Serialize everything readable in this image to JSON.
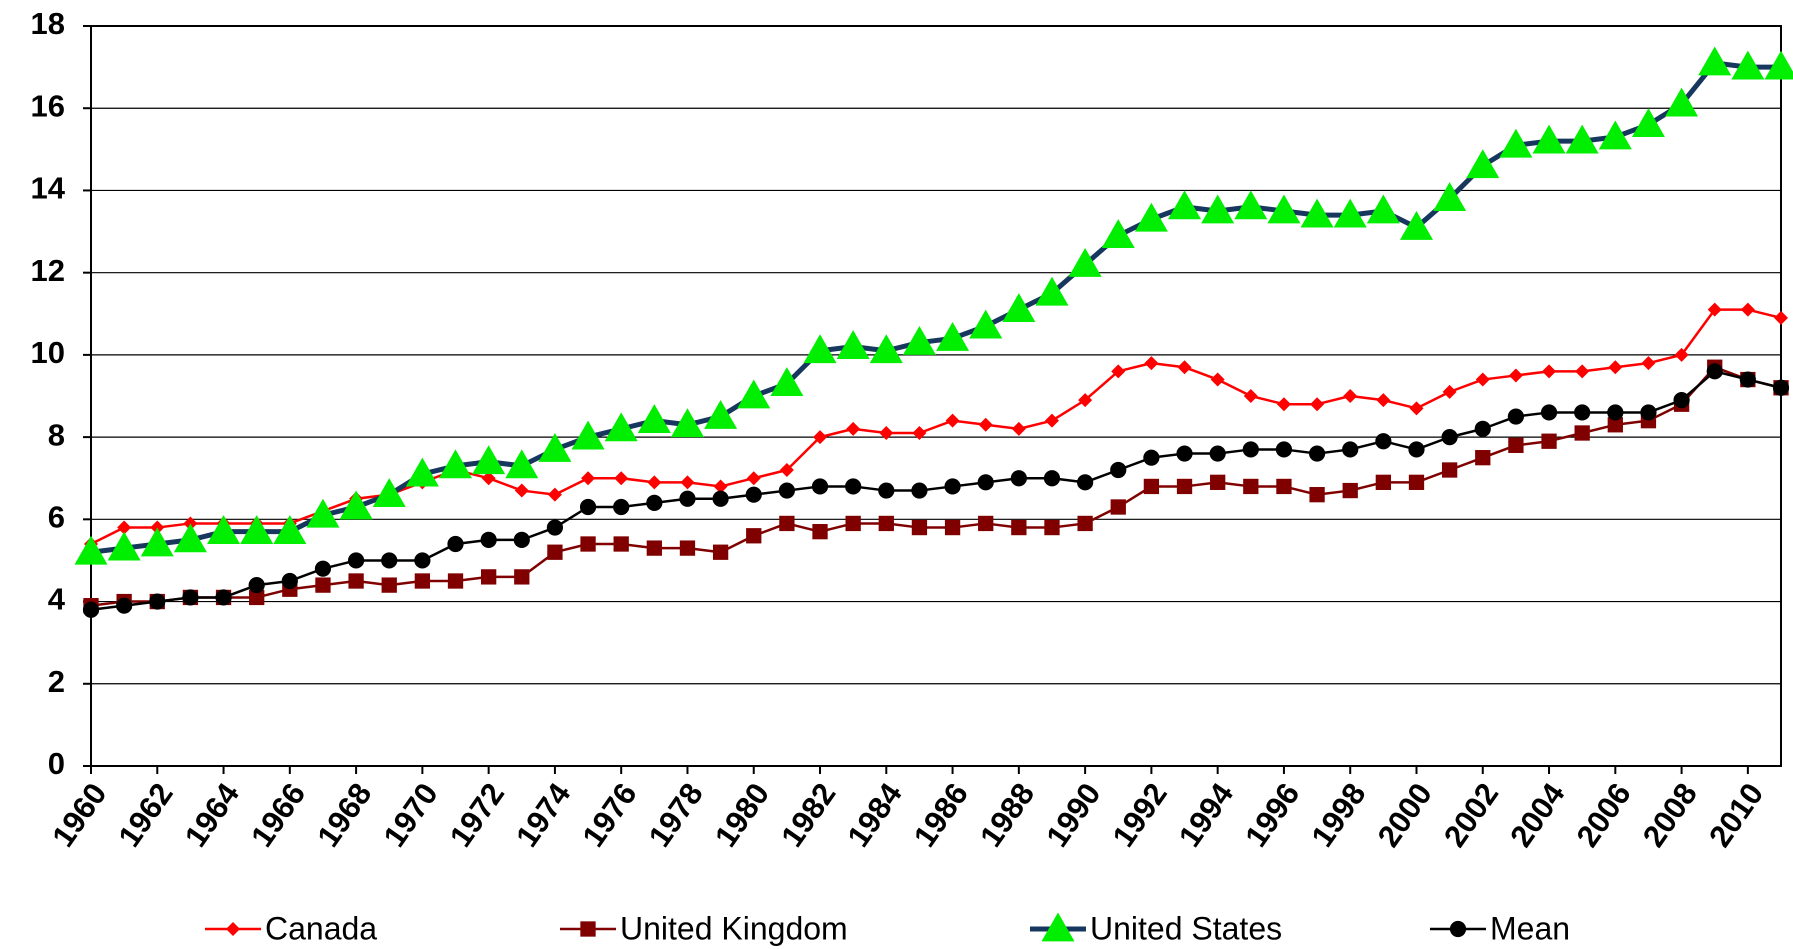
{
  "chart_data": {
    "type": "line",
    "x": [
      1960,
      1961,
      1962,
      1963,
      1964,
      1965,
      1966,
      1967,
      1968,
      1969,
      1970,
      1971,
      1972,
      1973,
      1974,
      1975,
      1976,
      1977,
      1978,
      1979,
      1980,
      1981,
      1982,
      1983,
      1984,
      1985,
      1986,
      1987,
      1988,
      1989,
      1990,
      1991,
      1992,
      1993,
      1994,
      1995,
      1996,
      1997,
      1998,
      1999,
      2000,
      2001,
      2002,
      2003,
      2004,
      2005,
      2006,
      2007,
      2008,
      2009,
      2010,
      2011
    ],
    "xlim": [
      1960,
      2011
    ],
    "xticks": [
      1960,
      1962,
      1964,
      1966,
      1968,
      1970,
      1972,
      1974,
      1976,
      1978,
      1980,
      1982,
      1984,
      1986,
      1988,
      1990,
      1992,
      1994,
      1996,
      1998,
      2000,
      2002,
      2004,
      2006,
      2008,
      2010
    ],
    "ylim": [
      0,
      18
    ],
    "yticks": [
      0,
      2,
      4,
      6,
      8,
      10,
      12,
      14,
      16,
      18
    ],
    "grid": true,
    "legend": "bottom",
    "series": [
      {
        "name": "Canada",
        "color": "#ff0000",
        "marker": "diamond",
        "marker_color": "#ff0000",
        "values": [
          5.4,
          5.8,
          5.8,
          5.9,
          5.9,
          5.9,
          5.9,
          6.2,
          6.5,
          6.6,
          6.9,
          7.2,
          7.0,
          6.7,
          6.6,
          7.0,
          7.0,
          6.9,
          6.9,
          6.8,
          7.0,
          7.2,
          8.0,
          8.2,
          8.1,
          8.1,
          8.4,
          8.3,
          8.2,
          8.4,
          8.9,
          9.6,
          9.8,
          9.7,
          9.4,
          9.0,
          8.8,
          8.8,
          9.0,
          8.9,
          8.7,
          9.1,
          9.4,
          9.5,
          9.6,
          9.6,
          9.7,
          9.8,
          10.0,
          11.1,
          11.1,
          10.9
        ]
      },
      {
        "name": "United Kingdom",
        "color": "#800000",
        "marker": "square",
        "marker_color": "#800000",
        "values": [
          3.9,
          4.0,
          4.0,
          4.1,
          4.1,
          4.1,
          4.3,
          4.4,
          4.5,
          4.4,
          4.5,
          4.5,
          4.6,
          4.6,
          5.2,
          5.4,
          5.4,
          5.3,
          5.3,
          5.2,
          5.6,
          5.9,
          5.7,
          5.9,
          5.9,
          5.8,
          5.8,
          5.9,
          5.8,
          5.8,
          5.9,
          6.3,
          6.8,
          6.8,
          6.9,
          6.8,
          6.8,
          6.6,
          6.7,
          6.9,
          6.9,
          7.2,
          7.5,
          7.8,
          7.9,
          8.1,
          8.3,
          8.4,
          8.8,
          9.7,
          9.4,
          9.2
        ]
      },
      {
        "name": "United States",
        "color": "#17375e",
        "marker": "triangle",
        "marker_color": "#00ee00",
        "values": [
          5.2,
          5.3,
          5.4,
          5.5,
          5.7,
          5.7,
          5.7,
          6.1,
          6.3,
          6.6,
          7.1,
          7.3,
          7.4,
          7.3,
          7.7,
          8.0,
          8.2,
          8.4,
          8.3,
          8.5,
          9.0,
          9.3,
          10.1,
          10.2,
          10.1,
          10.3,
          10.4,
          10.7,
          11.1,
          11.5,
          12.2,
          12.9,
          13.3,
          13.6,
          13.5,
          13.6,
          13.5,
          13.4,
          13.4,
          13.5,
          13.1,
          13.8,
          14.6,
          15.1,
          15.2,
          15.2,
          15.3,
          15.6,
          16.1,
          17.1,
          17.0,
          17.0
        ]
      },
      {
        "name": "Mean",
        "color": "#000000",
        "marker": "circle",
        "marker_color": "#000000",
        "values": [
          3.8,
          3.9,
          4.0,
          4.1,
          4.1,
          4.4,
          4.5,
          4.8,
          5.0,
          5.0,
          5.0,
          5.4,
          5.5,
          5.5,
          5.8,
          6.3,
          6.3,
          6.4,
          6.5,
          6.5,
          6.6,
          6.7,
          6.8,
          6.8,
          6.7,
          6.7,
          6.8,
          6.9,
          7.0,
          7.0,
          6.9,
          7.2,
          7.5,
          7.6,
          7.6,
          7.7,
          7.7,
          7.6,
          7.7,
          7.9,
          7.7,
          8.0,
          8.2,
          8.5,
          8.6,
          8.6,
          8.6,
          8.6,
          8.9,
          9.6,
          9.4,
          9.2
        ]
      }
    ]
  }
}
